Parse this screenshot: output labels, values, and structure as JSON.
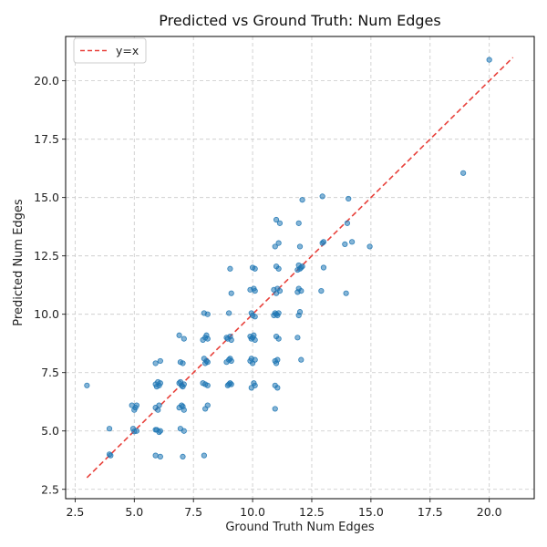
{
  "chart_data": {
    "type": "scatter",
    "title": "Predicted vs Ground Truth: Num Edges",
    "xlabel": "Ground Truth Num Edges",
    "ylabel": "Predicted Num Edges",
    "xlim": [
      2.1,
      21.9
    ],
    "ylim": [
      2.1,
      21.9
    ],
    "xticks": [
      2.5,
      5.0,
      7.5,
      10.0,
      12.5,
      15.0,
      17.5,
      20.0
    ],
    "xtick_labels": [
      "2.5",
      "5.0",
      "7.5",
      "10.0",
      "12.5",
      "15.0",
      "17.5",
      "20.0"
    ],
    "yticks": [
      2.5,
      5.0,
      7.5,
      10.0,
      12.5,
      15.0,
      17.5,
      20.0
    ],
    "ytick_labels": [
      "2.5",
      "5.0",
      "7.5",
      "10.0",
      "12.5",
      "15.0",
      "17.5",
      "20.0"
    ],
    "grid": true,
    "legend_position": "top-left",
    "reference_line": {
      "label": "y=x",
      "x": [
        3,
        21
      ],
      "y": [
        3,
        21
      ],
      "color": "#e8413b",
      "style": "dashed"
    },
    "marker_color": "#1f77b4",
    "series": [
      {
        "points": [
          [
            3.0,
            6.95
          ],
          [
            3.95,
            5.1
          ],
          [
            3.95,
            4.0
          ],
          [
            4.0,
            3.95
          ],
          [
            4.9,
            6.1
          ],
          [
            5.0,
            5.9
          ],
          [
            5.1,
            6.1
          ],
          [
            5.05,
            6.0
          ],
          [
            4.95,
            5.1
          ],
          [
            5.1,
            5.0
          ],
          [
            5.0,
            4.98
          ],
          [
            5.9,
            7.9
          ],
          [
            6.1,
            8.0
          ],
          [
            6.0,
            7.1
          ],
          [
            5.9,
            7.0
          ],
          [
            6.05,
            6.95
          ],
          [
            6.1,
            7.05
          ],
          [
            5.95,
            6.9
          ],
          [
            5.9,
            6.0
          ],
          [
            6.05,
            6.1
          ],
          [
            6.0,
            5.9
          ],
          [
            6.1,
            5.0
          ],
          [
            5.9,
            5.05
          ],
          [
            6.05,
            4.95
          ],
          [
            5.95,
            5.05
          ],
          [
            6.1,
            3.9
          ],
          [
            5.9,
            3.95
          ],
          [
            6.9,
            9.1
          ],
          [
            7.1,
            8.95
          ],
          [
            6.95,
            7.95
          ],
          [
            7.05,
            7.9
          ],
          [
            6.9,
            7.05
          ],
          [
            7.0,
            6.95
          ],
          [
            7.1,
            7.0
          ],
          [
            6.95,
            7.1
          ],
          [
            7.05,
            6.9
          ],
          [
            6.9,
            6.0
          ],
          [
            7.0,
            6.1
          ],
          [
            7.1,
            5.9
          ],
          [
            7.05,
            6.05
          ],
          [
            6.95,
            5.1
          ],
          [
            7.1,
            5.0
          ],
          [
            7.05,
            3.9
          ],
          [
            7.95,
            10.05
          ],
          [
            8.1,
            10.0
          ],
          [
            8.0,
            9.0
          ],
          [
            8.05,
            9.1
          ],
          [
            7.9,
            8.9
          ],
          [
            8.1,
            8.95
          ],
          [
            7.95,
            8.1
          ],
          [
            8.05,
            8.0
          ],
          [
            8.1,
            7.95
          ],
          [
            8.0,
            7.9
          ],
          [
            7.9,
            7.05
          ],
          [
            8.1,
            6.95
          ],
          [
            8.0,
            7.0
          ],
          [
            8.1,
            6.1
          ],
          [
            8.0,
            5.95
          ],
          [
            7.95,
            3.95
          ],
          [
            9.05,
            11.95
          ],
          [
            9.1,
            10.9
          ],
          [
            9.0,
            10.05
          ],
          [
            8.9,
            9.0
          ],
          [
            9.05,
            9.05
          ],
          [
            9.1,
            8.9
          ],
          [
            8.95,
            8.95
          ],
          [
            9.0,
            8.05
          ],
          [
            9.05,
            8.1
          ],
          [
            8.9,
            7.95
          ],
          [
            9.1,
            8.0
          ],
          [
            9.0,
            7.0
          ],
          [
            9.05,
            7.05
          ],
          [
            8.95,
            6.95
          ],
          [
            9.1,
            7.0
          ],
          [
            10.0,
            12.0
          ],
          [
            10.1,
            11.95
          ],
          [
            9.9,
            11.05
          ],
          [
            10.05,
            11.1
          ],
          [
            10.1,
            11.0
          ],
          [
            9.95,
            10.05
          ],
          [
            10.0,
            9.95
          ],
          [
            10.1,
            9.9
          ],
          [
            9.9,
            9.05
          ],
          [
            10.0,
            9.0
          ],
          [
            10.05,
            9.1
          ],
          [
            9.95,
            8.95
          ],
          [
            10.1,
            8.9
          ],
          [
            9.9,
            8.0
          ],
          [
            10.0,
            7.9
          ],
          [
            10.1,
            8.05
          ],
          [
            9.95,
            8.1
          ],
          [
            10.05,
            7.05
          ],
          [
            9.95,
            6.85
          ],
          [
            10.1,
            6.95
          ],
          [
            11.0,
            14.05
          ],
          [
            11.15,
            13.9
          ],
          [
            11.1,
            13.05
          ],
          [
            10.95,
            12.9
          ],
          [
            11.0,
            12.05
          ],
          [
            11.1,
            11.95
          ],
          [
            10.9,
            11.05
          ],
          [
            11.05,
            11.1
          ],
          [
            11.0,
            10.9
          ],
          [
            11.15,
            11.0
          ],
          [
            10.95,
            10.05
          ],
          [
            11.0,
            10.0
          ],
          [
            11.05,
            9.95
          ],
          [
            11.1,
            10.05
          ],
          [
            10.9,
            9.95
          ],
          [
            11.0,
            9.05
          ],
          [
            11.1,
            8.95
          ],
          [
            10.95,
            8.0
          ],
          [
            11.0,
            7.9
          ],
          [
            11.05,
            8.05
          ],
          [
            10.95,
            6.95
          ],
          [
            11.05,
            6.85
          ],
          [
            10.95,
            5.95
          ],
          [
            12.1,
            14.9
          ],
          [
            11.95,
            13.9
          ],
          [
            12.0,
            12.9
          ],
          [
            11.95,
            12.1
          ],
          [
            12.05,
            12.0
          ],
          [
            11.9,
            11.9
          ],
          [
            12.1,
            12.05
          ],
          [
            12.0,
            11.95
          ],
          [
            11.95,
            11.1
          ],
          [
            12.05,
            11.0
          ],
          [
            11.9,
            10.95
          ],
          [
            12.0,
            10.1
          ],
          [
            11.95,
            9.95
          ],
          [
            11.9,
            9.0
          ],
          [
            12.05,
            8.05
          ],
          [
            12.95,
            15.05
          ],
          [
            13.0,
            13.1
          ],
          [
            12.95,
            13.05
          ],
          [
            13.0,
            12.0
          ],
          [
            12.9,
            11.0
          ],
          [
            14.05,
            14.95
          ],
          [
            14.0,
            13.9
          ],
          [
            14.2,
            13.1
          ],
          [
            13.9,
            13.0
          ],
          [
            13.95,
            10.9
          ],
          [
            14.95,
            12.9
          ],
          [
            18.9,
            16.05
          ],
          [
            20.0,
            20.9
          ]
        ]
      }
    ]
  }
}
